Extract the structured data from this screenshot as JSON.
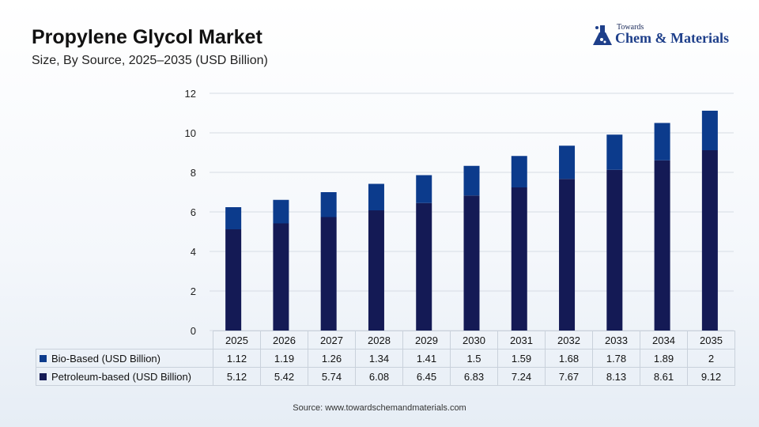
{
  "header": {
    "title": "Propylene Glycol Market",
    "subtitle": "Size, By Source, 2025–2035 (USD Billion)"
  },
  "logo": {
    "small_text": "Towards",
    "big_text": "Chem & Materials",
    "icon": "flask-icon"
  },
  "source": "Source:  www.towardschemandmaterials.com",
  "colors": {
    "petroleum": "#141a55",
    "bio": "#0c3b8c",
    "grid": "#d6dce4"
  },
  "chart_data": {
    "type": "bar",
    "stacked": true,
    "title": "Propylene Glycol Market",
    "subtitle": "Size, By Source, 2025–2035 (USD Billion)",
    "categories": [
      "2025",
      "2026",
      "2027",
      "2028",
      "2029",
      "2030",
      "2031",
      "2032",
      "2033",
      "2034",
      "2035"
    ],
    "series": [
      {
        "name": "Petroleum-based (USD Billion)",
        "values": [
          5.12,
          5.42,
          5.74,
          6.08,
          6.45,
          6.83,
          7.24,
          7.67,
          8.13,
          8.61,
          9.12
        ]
      },
      {
        "name": "Bio-Based (USD Billion)",
        "values": [
          1.12,
          1.19,
          1.26,
          1.34,
          1.41,
          1.5,
          1.59,
          1.68,
          1.78,
          1.89,
          2
        ]
      }
    ],
    "ylim": [
      0,
      12
    ],
    "yticks": [
      0,
      2,
      4,
      6,
      8,
      10,
      12
    ],
    "grid": true,
    "legend": "data-table"
  }
}
